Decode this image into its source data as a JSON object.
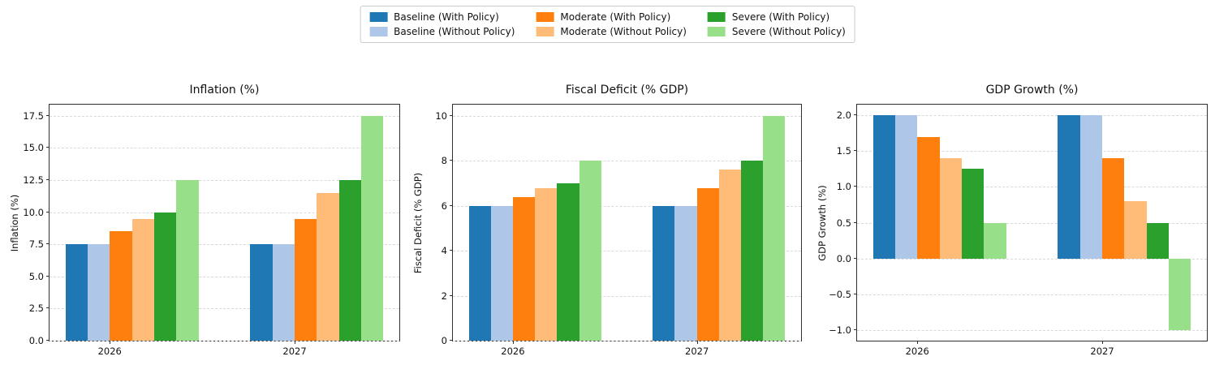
{
  "legend": {
    "items": [
      {
        "label": "Baseline (With Policy)",
        "color": "#1f77b4"
      },
      {
        "label": "Baseline (Without Policy)",
        "color": "#aec7e8"
      },
      {
        "label": "Moderate (With Policy)",
        "color": "#ff7f0e"
      },
      {
        "label": "Moderate (Without Policy)",
        "color": "#ffbb78"
      },
      {
        "label": "Severe (With Policy)",
        "color": "#2ca02c"
      },
      {
        "label": "Severe (Without Policy)",
        "color": "#98df8a"
      }
    ]
  },
  "chart_data": [
    {
      "type": "bar",
      "title": "Inflation (%)",
      "ylabel": "Inflation (%)",
      "xlabel": "",
      "categories": [
        "2026",
        "2027"
      ],
      "ylim": [
        0,
        18.375
      ],
      "grid": true,
      "legend_position": "figure-top-center",
      "yticks": [
        {
          "value": 0,
          "label": "0.0"
        },
        {
          "value": 2.5,
          "label": "2.5"
        },
        {
          "value": 5,
          "label": "5.0"
        },
        {
          "value": 7.5,
          "label": "7.5"
        },
        {
          "value": 10,
          "label": "10.0"
        },
        {
          "value": 12.5,
          "label": "12.5"
        },
        {
          "value": 15,
          "label": "15.0"
        },
        {
          "value": 17.5,
          "label": "17.5"
        }
      ],
      "series": [
        {
          "name": "Baseline (With Policy)",
          "color": "#1f77b4",
          "values": [
            7.5,
            7.5
          ]
        },
        {
          "name": "Baseline (Without Policy)",
          "color": "#aec7e8",
          "values": [
            7.5,
            7.5
          ]
        },
        {
          "name": "Moderate (With Policy)",
          "color": "#ff7f0e",
          "values": [
            8.5,
            9.5
          ]
        },
        {
          "name": "Moderate (Without Policy)",
          "color": "#ffbb78",
          "values": [
            9.5,
            11.5
          ]
        },
        {
          "name": "Severe (With Policy)",
          "color": "#2ca02c",
          "values": [
            10.0,
            12.5
          ]
        },
        {
          "name": "Severe (Without Policy)",
          "color": "#98df8a",
          "values": [
            12.5,
            17.5
          ]
        }
      ]
    },
    {
      "type": "bar",
      "title": "Fiscal Deficit (% GDP)",
      "ylabel": "Fiscal Deficit (% GDP)",
      "xlabel": "",
      "categories": [
        "2026",
        "2027"
      ],
      "ylim": [
        0,
        10.5
      ],
      "grid": true,
      "legend_position": "figure-top-center",
      "yticks": [
        {
          "value": 0,
          "label": "0"
        },
        {
          "value": 2,
          "label": "2"
        },
        {
          "value": 4,
          "label": "4"
        },
        {
          "value": 6,
          "label": "6"
        },
        {
          "value": 8,
          "label": "8"
        },
        {
          "value": 10,
          "label": "10"
        }
      ],
      "series": [
        {
          "name": "Baseline (With Policy)",
          "color": "#1f77b4",
          "values": [
            6.0,
            6.0
          ]
        },
        {
          "name": "Baseline (Without Policy)",
          "color": "#aec7e8",
          "values": [
            6.0,
            6.0
          ]
        },
        {
          "name": "Moderate (With Policy)",
          "color": "#ff7f0e",
          "values": [
            6.4,
            6.8
          ]
        },
        {
          "name": "Moderate (Without Policy)",
          "color": "#ffbb78",
          "values": [
            6.8,
            7.6
          ]
        },
        {
          "name": "Severe (With Policy)",
          "color": "#2ca02c",
          "values": [
            7.0,
            8.0
          ]
        },
        {
          "name": "Severe (Without Policy)",
          "color": "#98df8a",
          "values": [
            8.0,
            10.0
          ]
        }
      ]
    },
    {
      "type": "bar",
      "title": "GDP Growth (%)",
      "ylabel": "GDP Growth (%)",
      "xlabel": "",
      "categories": [
        "2026",
        "2027"
      ],
      "ylim": [
        -1.15,
        2.15
      ],
      "grid": true,
      "legend_position": "figure-top-center",
      "yticks": [
        {
          "value": -1.0,
          "label": "−1.0"
        },
        {
          "value": -0.5,
          "label": "−0.5"
        },
        {
          "value": 0.0,
          "label": "0.0"
        },
        {
          "value": 0.5,
          "label": "0.5"
        },
        {
          "value": 1.0,
          "label": "1.0"
        },
        {
          "value": 1.5,
          "label": "1.5"
        },
        {
          "value": 2.0,
          "label": "2.0"
        }
      ],
      "series": [
        {
          "name": "Baseline (With Policy)",
          "color": "#1f77b4",
          "values": [
            2.0,
            2.0
          ]
        },
        {
          "name": "Baseline (Without Policy)",
          "color": "#aec7e8",
          "values": [
            2.0,
            2.0
          ]
        },
        {
          "name": "Moderate (With Policy)",
          "color": "#ff7f0e",
          "values": [
            1.7,
            1.4
          ]
        },
        {
          "name": "Moderate (Without Policy)",
          "color": "#ffbb78",
          "values": [
            1.4,
            0.8
          ]
        },
        {
          "name": "Severe (With Policy)",
          "color": "#2ca02c",
          "values": [
            1.25,
            0.5
          ]
        },
        {
          "name": "Severe (Without Policy)",
          "color": "#98df8a",
          "values": [
            0.5,
            -1.0
          ]
        }
      ]
    }
  ]
}
